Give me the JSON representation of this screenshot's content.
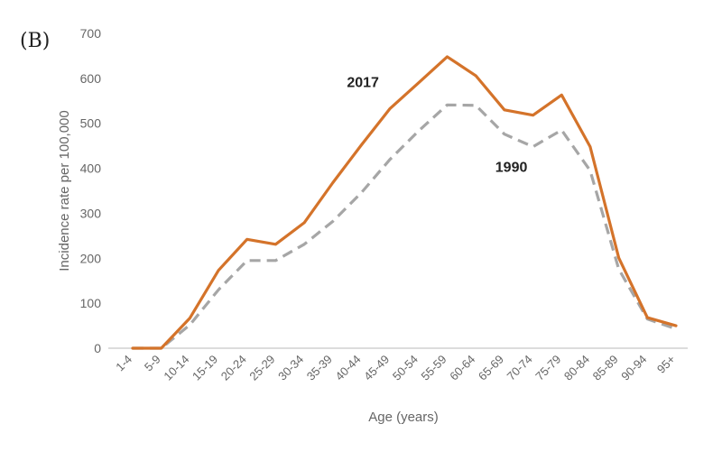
{
  "panel_label": "(B)",
  "chart_data": {
    "type": "line",
    "xlabel": "Age (years)",
    "ylabel": "Incidence rate per 100,000",
    "ylim": [
      0,
      700
    ],
    "yticks": [
      "0",
      "100",
      "200",
      "300",
      "400",
      "500",
      "600",
      "700"
    ],
    "grid": false,
    "categories": [
      "1-4",
      "5-9",
      "10-14",
      "15-19",
      "20-24",
      "25-29",
      "30-34",
      "35-39",
      "40-44",
      "45-49",
      "50-54",
      "55-59",
      "60-64",
      "65-69",
      "70-74",
      "75-79",
      "80-84",
      "85-89",
      "90-94",
      "95+"
    ],
    "series": [
      {
        "name": "2017",
        "color": "#D4732A",
        "style": "solid",
        "values": [
          0,
          0,
          67,
          173,
          242,
          231,
          279,
          368,
          452,
          533,
          590,
          648,
          606,
          530,
          518,
          563,
          448,
          201,
          68,
          50
        ]
      },
      {
        "name": "1990",
        "color": "#A6A6A6",
        "style": "dashed",
        "values": [
          0,
          0,
          52,
          130,
          195,
          195,
          231,
          282,
          346,
          420,
          483,
          541,
          540,
          476,
          448,
          485,
          395,
          176,
          65,
          43
        ]
      }
    ]
  }
}
